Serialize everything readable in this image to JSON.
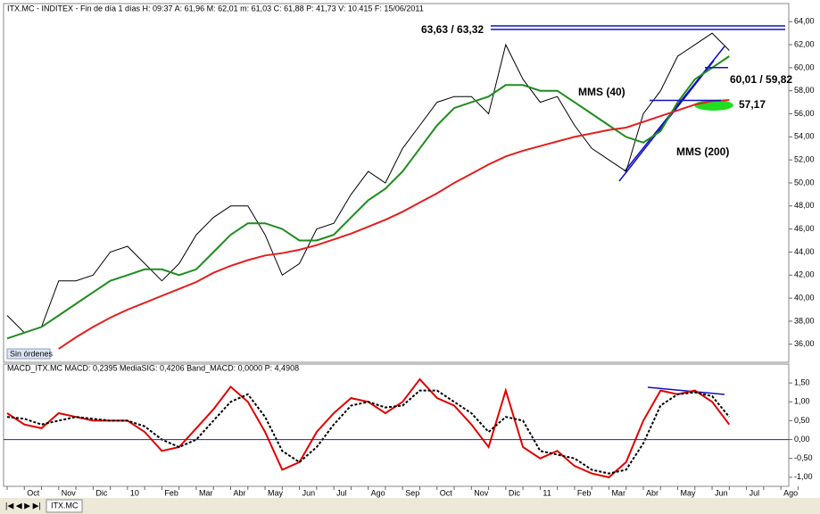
{
  "chart_data": [
    {
      "type": "line",
      "title": "ITX.MC - INDITEX - Fin de día 1 días H: 09:37 A: 61,96 M: 62,01 m: 61,03 C: 61,88 P: 41,73 V: 10.415 F: 15/06/2011",
      "status": "Sin órdenes",
      "annotations": [
        "63,63 / 63,32",
        "60,01 / 59,82",
        "57,17",
        "MMS (40)",
        "MMS (200)"
      ],
      "levels": [
        63.63,
        63.32,
        60.01,
        57.17
      ],
      "series": [
        {
          "color": "#000000",
          "values": [
            38.5,
            37,
            37.5,
            41.5,
            41.5,
            42,
            44,
            44.5,
            43,
            41.5,
            43,
            45.5,
            47,
            48,
            48,
            45.5,
            42,
            43,
            46,
            46.5,
            49,
            51,
            50,
            53,
            55,
            57,
            57.5,
            57.5,
            56,
            62,
            59,
            57,
            57.5,
            55,
            53,
            52,
            51,
            56,
            58,
            61,
            62,
            63,
            61.5,
            null,
            null,
            null,
            null
          ]
        },
        {
          "color": "#1e8c1e",
          "values": [
            36.5,
            37,
            37.5,
            38.5,
            39.5,
            40.5,
            41.5,
            42,
            42.5,
            42.5,
            42,
            42.5,
            44,
            45.5,
            46.5,
            46.5,
            46,
            45,
            45,
            45.5,
            47,
            48.5,
            49.5,
            51,
            53,
            55,
            56.5,
            57,
            57.5,
            58.5,
            58.5,
            58,
            58,
            57,
            56,
            55,
            54,
            53.5,
            54.5,
            57,
            59,
            60,
            61,
            null,
            null,
            null,
            null
          ]
        },
        {
          "color": "#e02020",
          "values": [
            null,
            null,
            null,
            35.6,
            36.6,
            37.5,
            38.3,
            39,
            39.6,
            40.2,
            40.8,
            41.4,
            42.2,
            42.8,
            43.3,
            43.7,
            43.9,
            44.2,
            44.6,
            45.1,
            45.6,
            46.2,
            46.8,
            47.5,
            48.3,
            49.1,
            50,
            50.8,
            51.6,
            52.3,
            52.8,
            53.2,
            53.6,
            54,
            54.3,
            54.6,
            54.8,
            55.3,
            55.8,
            56.3,
            56.8,
            57.1,
            57.2,
            null,
            null,
            null,
            null
          ]
        }
      ],
      "ylim": [
        34.43,
        65.57
      ],
      "yticks": [
        {
          "value": 36,
          "label": "36,00"
        },
        {
          "value": 38,
          "label": "38,00"
        },
        {
          "value": 40,
          "label": "40,00"
        },
        {
          "value": 42,
          "label": "42,00"
        },
        {
          "value": 44,
          "label": "44,00"
        },
        {
          "value": 46,
          "label": "46,00"
        },
        {
          "value": 48,
          "label": "48,00"
        },
        {
          "value": 50,
          "label": "50,00"
        },
        {
          "value": 52,
          "label": "52,00"
        },
        {
          "value": 54,
          "label": "54,00"
        },
        {
          "value": 56,
          "label": "56,00"
        },
        {
          "value": 58,
          "label": "58,00"
        },
        {
          "value": 60,
          "label": "60,00"
        },
        {
          "value": 62,
          "label": "62,00"
        },
        {
          "value": 64,
          "label": "64,00"
        }
      ]
    },
    {
      "type": "line",
      "title": "MACD_ITX.MC MACD: 0,2395 MediaSIG: 0,4206 Band_MACD: 0,0000 P: 4,4908",
      "tab": "ITX.MC",
      "categories": [
        null,
        "Oct",
        null,
        "Nov",
        null,
        "Dic",
        null,
        "10",
        null,
        "Feb",
        null,
        "Mar",
        null,
        "Abr",
        null,
        "May",
        null,
        "Jun",
        null,
        "Jul",
        null,
        "Ago",
        null,
        "Sep",
        null,
        "Oct",
        null,
        "Nov",
        null,
        "Dic",
        null,
        "11",
        null,
        "Feb",
        null,
        "Mar",
        null,
        "Abr",
        null,
        "May",
        null,
        "Jun",
        null,
        "Jul",
        null,
        "Ago",
        null
      ],
      "band": 0,
      "series": [
        {
          "color": "#e00000",
          "values": [
            0.7,
            0.4,
            0.3,
            0.7,
            0.6,
            0.5,
            0.5,
            0.5,
            0.2,
            -0.3,
            -0.2,
            0.3,
            0.8,
            1.4,
            1.0,
            0.2,
            -0.8,
            -0.6,
            0.2,
            0.7,
            1.1,
            1.0,
            0.7,
            1.0,
            1.6,
            1.1,
            0.9,
            0.4,
            -0.2,
            1.3,
            -0.2,
            -0.5,
            -0.3,
            -0.7,
            -0.9,
            -1.0,
            -0.6,
            0.5,
            1.3,
            1.2,
            1.3,
            1.0,
            0.4,
            null,
            null,
            null,
            null
          ]
        },
        {
          "color": "#000000",
          "values": [
            0.6,
            0.55,
            0.4,
            0.5,
            0.6,
            0.55,
            0.5,
            0.5,
            0.35,
            0.0,
            -0.2,
            0.0,
            0.5,
            1.0,
            1.2,
            0.6,
            -0.3,
            -0.6,
            -0.2,
            0.4,
            0.9,
            1.0,
            0.85,
            0.9,
            1.3,
            1.3,
            1.0,
            0.7,
            0.2,
            0.6,
            0.5,
            -0.3,
            -0.4,
            -0.5,
            -0.8,
            -0.9,
            -0.8,
            -0.1,
            0.9,
            1.2,
            1.25,
            1.15,
            0.6,
            null,
            null,
            null,
            null
          ]
        }
      ],
      "ylim": [
        -1.24,
        2.0
      ],
      "yticks": [
        {
          "value": -1,
          "label": "-1,00"
        },
        {
          "value": -0.5,
          "label": "-0,50"
        },
        {
          "value": 0,
          "label": "0,00"
        },
        {
          "value": 0.5,
          "label": "0,50"
        },
        {
          "value": 1,
          "label": "1,00"
        },
        {
          "value": 1.5,
          "label": "1,50"
        }
      ]
    }
  ]
}
